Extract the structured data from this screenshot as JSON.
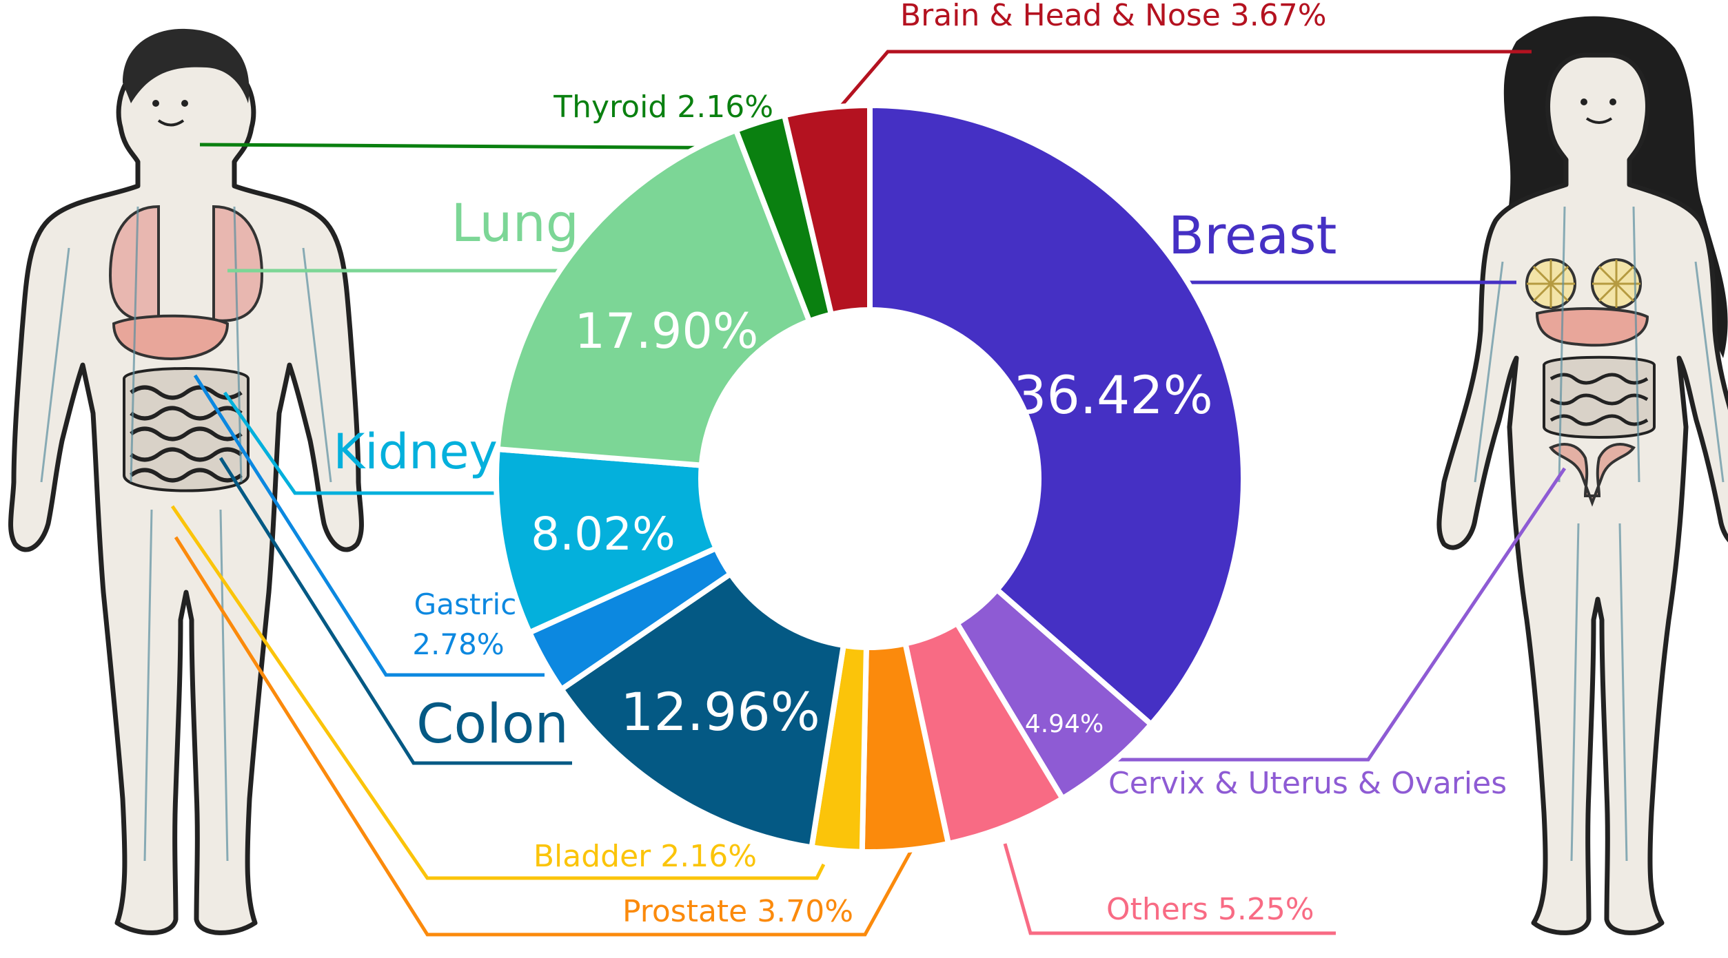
{
  "chart_data": {
    "type": "pie",
    "variant": "donut",
    "title": "",
    "slices": [
      {
        "label": "Breast",
        "value": 36.42,
        "inside_label": "36.42%",
        "outside_label": "Breast",
        "color": "#4530c4"
      },
      {
        "label": "Cervix & Uterus & Ovaries",
        "value": 4.94,
        "inside_label": "4.94%",
        "outside_label": "Cervix & Uterus & Ovaries",
        "color": "#8e5bd4"
      },
      {
        "label": "Others",
        "value": 5.25,
        "inside_label": "",
        "outside_label": "Others 5.25%",
        "color": "#f86b84"
      },
      {
        "label": "Prostate",
        "value": 3.7,
        "inside_label": "",
        "outside_label": "Prostate 3.70%",
        "color": "#fb8a0c"
      },
      {
        "label": "Bladder",
        "value": 2.16,
        "inside_label": "",
        "outside_label": "Bladder 2.16%",
        "color": "#fbc40a"
      },
      {
        "label": "Colon",
        "value": 12.96,
        "inside_label": "12.96%",
        "outside_label": "Colon",
        "color": "#045984"
      },
      {
        "label": "Gastric",
        "value": 2.78,
        "inside_label": "",
        "outside_label": "Gastric 2.78%",
        "color": "#0c88e0"
      },
      {
        "label": "Kidney",
        "value": 8.02,
        "inside_label": "8.02%",
        "outside_label": "Kidney",
        "color": "#04b0dc"
      },
      {
        "label": "Lung",
        "value": 17.9,
        "inside_label": "17.90%",
        "outside_label": "Lung",
        "color": "#7cd696"
      },
      {
        "label": "Thyroid",
        "value": 2.16,
        "inside_label": "",
        "outside_label": "Thyroid 2.16%",
        "color": "#0a8010"
      },
      {
        "label": "Brain & Head & Nose",
        "value": 3.67,
        "inside_label": "",
        "outside_label": "Brain & Head & Nose 3.67%",
        "color": "#b41220"
      }
    ],
    "figures": [
      "male-body-illustration",
      "female-body-illustration"
    ]
  }
}
